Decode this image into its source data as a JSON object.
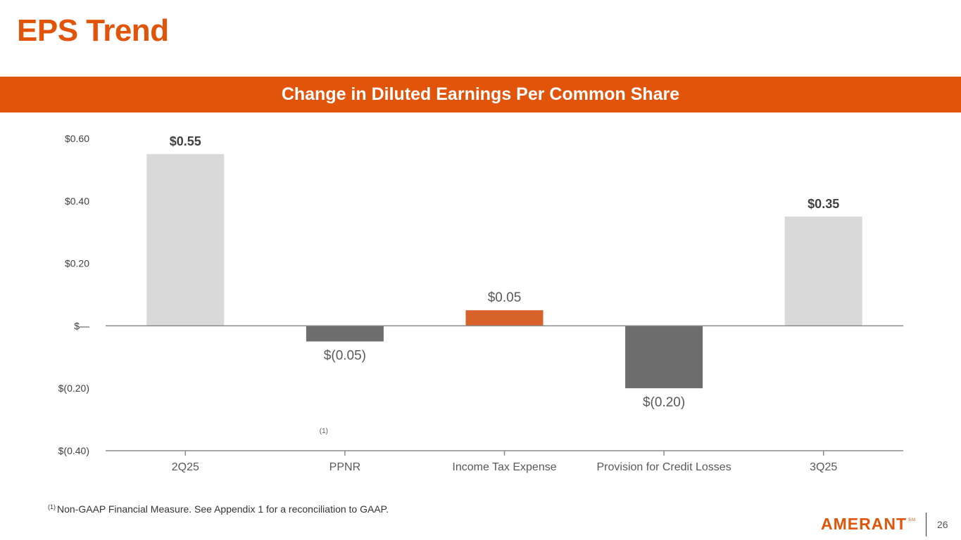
{
  "slide": {
    "title": "EPS Trend",
    "banner": "Change in Diluted Earnings Per Common Share"
  },
  "colors": {
    "brand_orange": "#e3540b",
    "bar_light": "#d9d9d9",
    "bar_dark": "#6d6d6d",
    "bar_accent": "#d8622a",
    "axis": "#8c8c8c",
    "text_dark": "#404040",
    "text_mid": "#595959"
  },
  "chart_data": {
    "type": "bar",
    "subtype": "waterfall",
    "title": "Change in Diluted Earnings Per Common Share",
    "categories": [
      "2Q25",
      "PPNR",
      "Income Tax Expense",
      "Provision for Credit Losses",
      "3Q25"
    ],
    "values": [
      0.55,
      -0.05,
      0.05,
      -0.2,
      0.35
    ],
    "data_labels": [
      "$0.55",
      "$(0.05)",
      "$0.05",
      "$(0.20)",
      "$0.35"
    ],
    "label_bold": [
      true,
      false,
      false,
      false,
      true
    ],
    "bar_styles": [
      "light",
      "dark",
      "accent",
      "dark",
      "light"
    ],
    "category_annotations": [
      "",
      "(1)",
      "",
      "",
      ""
    ],
    "ylim": [
      -0.4,
      0.6
    ],
    "yticks": [
      0.6,
      0.4,
      0.2,
      0.0,
      -0.2,
      -0.4
    ],
    "ytick_labels": [
      "$0.60",
      "$0.40",
      "$0.20",
      "$—",
      "$(0.20)",
      "$(0.40)"
    ],
    "xlabel": "",
    "ylabel": "",
    "grid": false,
    "legend": "none"
  },
  "footnote": {
    "marker": "(1)",
    "text": "Non-GAAP Financial Measure. See Appendix 1 for a reconciliation to GAAP."
  },
  "footer": {
    "logo_text": "AMERANT",
    "logo_mark": "SM",
    "page_number": "26"
  }
}
